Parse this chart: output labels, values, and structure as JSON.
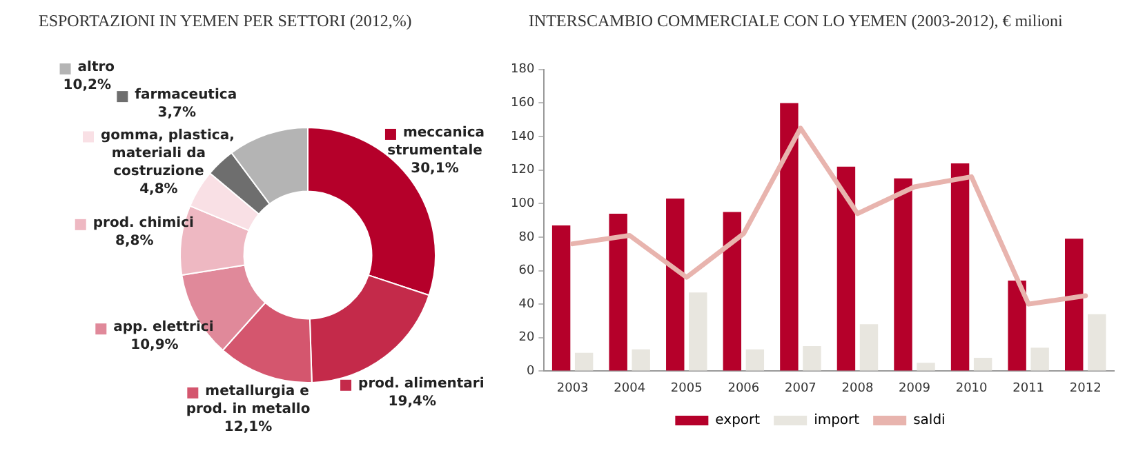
{
  "chart_data": [
    {
      "type": "donut",
      "title": "ESPORTAZIONI IN YEMEN PER SETTORI (2012,%)",
      "categories": [
        "meccanica strumentale",
        "prod. alimentari",
        "metallurgia e prod. in metallo",
        "app. elettrici",
        "prod. chimici",
        "gomma, plastica, materiali da costruzione",
        "farmaceutica",
        "altro"
      ],
      "values": [
        30.1,
        19.4,
        12.1,
        10.9,
        8.8,
        4.8,
        3.7,
        10.2
      ],
      "value_labels": [
        "30,1%",
        "19,4%",
        "12,1%",
        "10,9%",
        "8,8%",
        "4,8%",
        "3,7%",
        "10,2%"
      ],
      "colors": [
        "#b5002a",
        "#c42a4a",
        "#d4566e",
        "#e0899a",
        "#eeb8c2",
        "#f9e0e5",
        "#6e6e6e",
        "#b4b4b4"
      ],
      "legend": "left"
    },
    {
      "type": "bar",
      "title": "INTERSCAMBIO COMMERCIALE CON LO YEMEN (2003-2012), € milioni",
      "categories": [
        "2003",
        "2004",
        "2005",
        "2006",
        "2007",
        "2008",
        "2009",
        "2010",
        "2011",
        "2012"
      ],
      "series": [
        {
          "name": "export",
          "color": "#b5002a",
          "values": [
            87,
            94,
            103,
            95,
            160,
            122,
            115,
            124,
            54,
            79
          ]
        },
        {
          "name": "import",
          "color": "#e8e6df",
          "values": [
            11,
            13,
            47,
            13,
            15,
            28,
            5,
            8,
            14,
            34
          ]
        },
        {
          "name": "saldi",
          "type": "line",
          "color": "#e8b4ae",
          "values": [
            76,
            81,
            56,
            82,
            145,
            94,
            110,
            116,
            40,
            45
          ]
        }
      ],
      "ylim": [
        0,
        180
      ],
      "yticks": [
        0,
        20,
        40,
        60,
        80,
        100,
        120,
        140,
        160,
        180
      ],
      "legend": "bottom"
    }
  ]
}
